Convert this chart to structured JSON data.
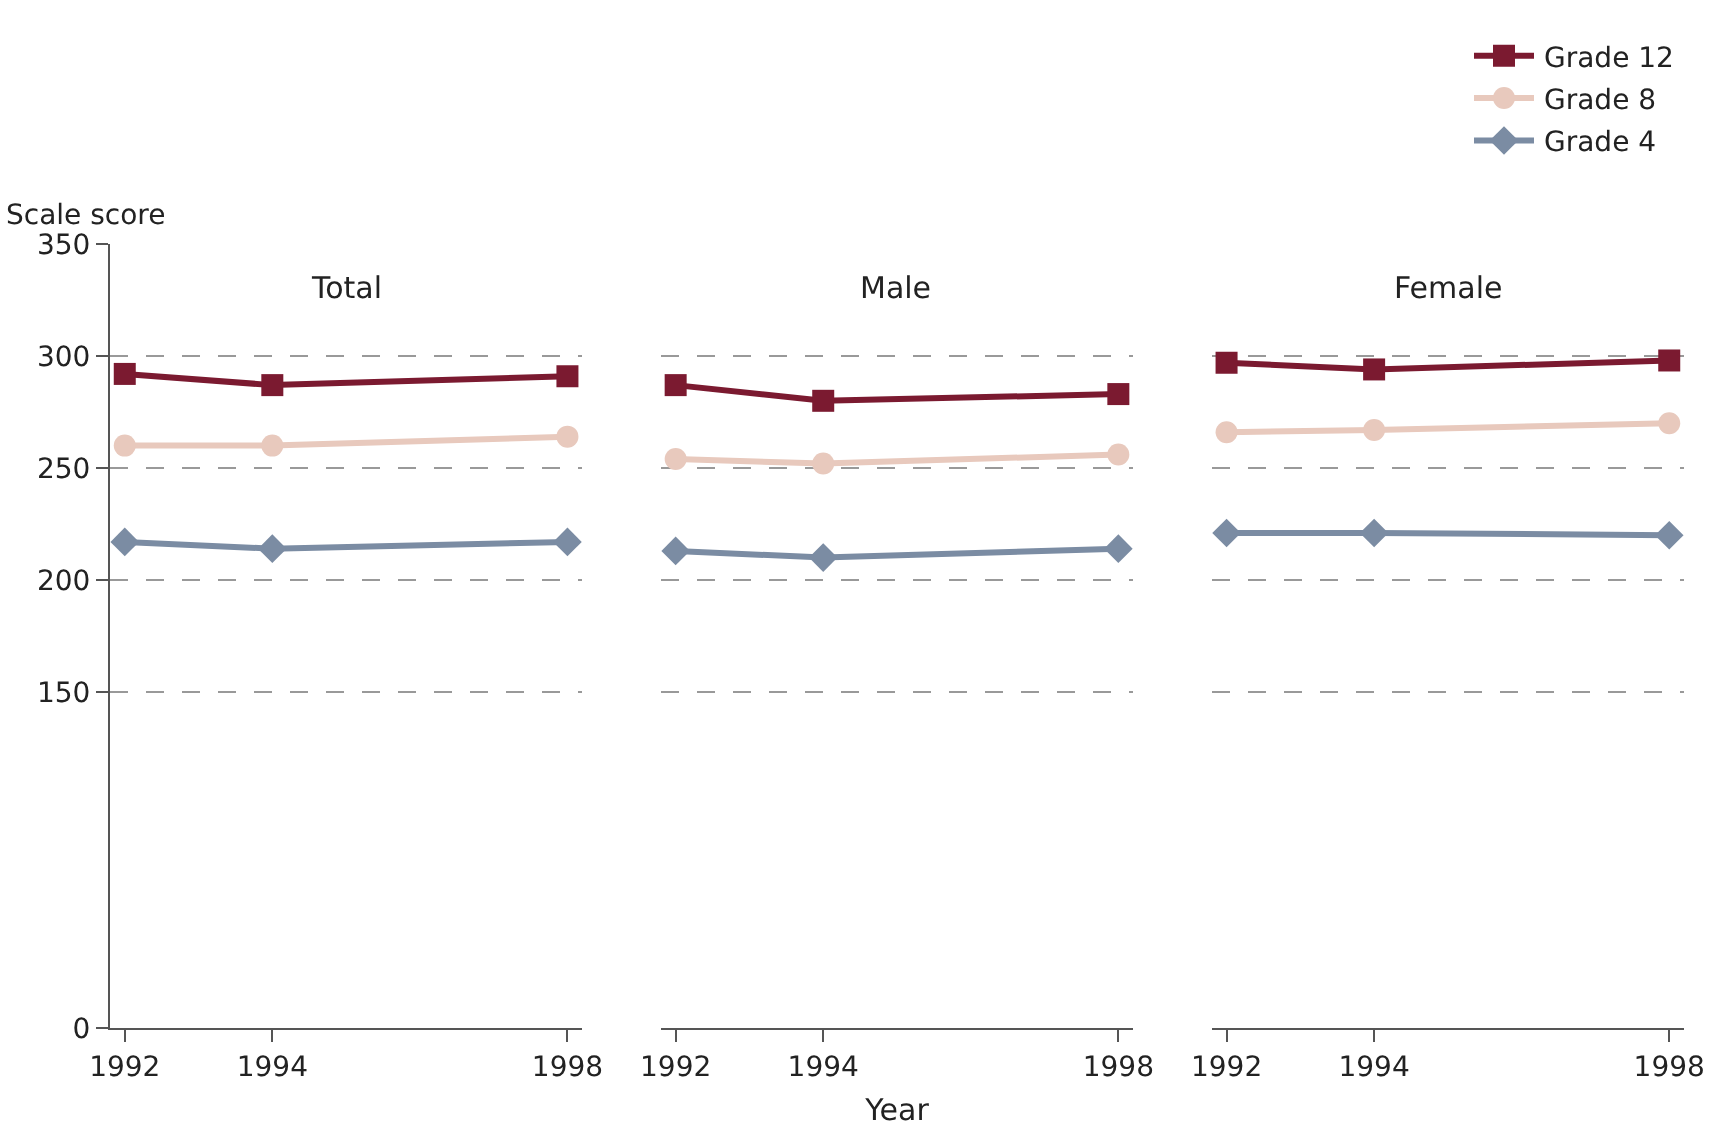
{
  "chart_data": [
    {
      "type": "line",
      "title": "Total",
      "ylabel": "Scale score",
      "x": [
        1992,
        1994,
        1998
      ],
      "xlim": [
        1991.8,
        1998.2
      ],
      "xticks": [
        1992,
        1994,
        1998
      ],
      "ylim": [
        0,
        350
      ],
      "yticks": [
        0,
        150,
        200,
        250,
        300,
        350
      ],
      "grid": "y",
      "legend": "top right",
      "series": [
        {
          "name": "Grade 12",
          "color": "#7b1a30",
          "marker": "square",
          "values": [
            292,
            287,
            291
          ]
        },
        {
          "name": "Grade 8",
          "color": "#e8c9bd",
          "marker": "circle",
          "values": [
            260,
            260,
            264
          ]
        },
        {
          "name": "Grade 4",
          "color": "#7b8ca3",
          "marker": "diamond",
          "values": [
            217,
            214,
            217
          ]
        }
      ]
    },
    {
      "type": "line",
      "title": "Male",
      "xlabel": "Year",
      "x": [
        1992,
        1994,
        1998
      ],
      "xlim": [
        1991.8,
        1998.2
      ],
      "xticks": [
        1992,
        1994,
        1998
      ],
      "ylim": [
        0,
        350
      ],
      "yticks": [
        0,
        150,
        200,
        250,
        300,
        350
      ],
      "grid": "y",
      "tick_labels": "x",
      "series": [
        {
          "color": "#7b1a30",
          "marker": "square",
          "values": [
            287,
            280,
            283
          ]
        },
        {
          "color": "#e8c9bd",
          "marker": "circle",
          "values": [
            254,
            252,
            256
          ]
        },
        {
          "color": "#7b8ca3",
          "marker": "diamond",
          "values": [
            213,
            210,
            214
          ]
        }
      ]
    },
    {
      "type": "line",
      "title": "Female",
      "x": [
        1992,
        1994,
        1998
      ],
      "xlim": [
        1991.8,
        1998.2
      ],
      "xticks": [
        1992,
        1994,
        1998
      ],
      "ylim": [
        0,
        350
      ],
      "yticks": [
        0,
        150,
        200,
        250,
        300,
        350
      ],
      "grid": "y",
      "tick_labels": "x",
      "series": [
        {
          "color": "#7b1a30",
          "marker": "square",
          "values": [
            297,
            294,
            298
          ]
        },
        {
          "color": "#e8c9bd",
          "marker": "circle",
          "values": [
            266,
            267,
            270
          ]
        },
        {
          "color": "#7b8ca3",
          "marker": "diamond",
          "values": [
            221,
            221,
            220
          ]
        }
      ]
    }
  ]
}
